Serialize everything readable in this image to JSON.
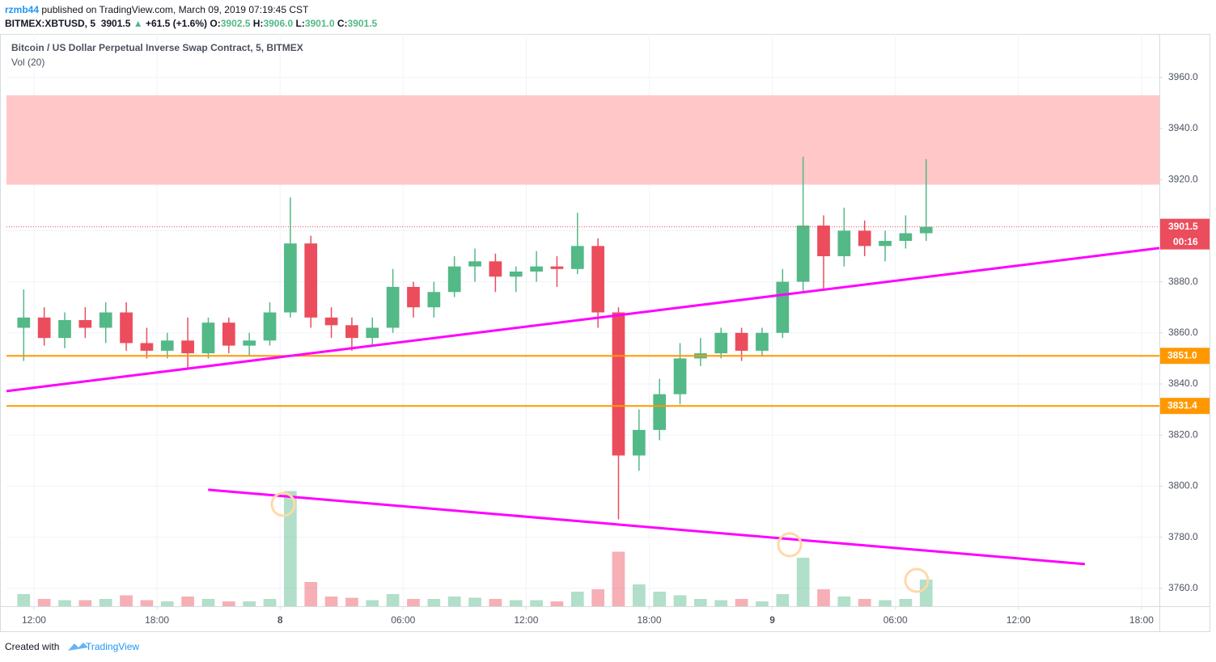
{
  "header": {
    "author": "rzmb44",
    "published": "published on TradingView.com, March 09, 2019 07:19:45 CST",
    "symbol": "BITMEX:XBTUSD, 5",
    "price": "3901.5",
    "arrow": "▲",
    "change": "+61.5 (+1.6%)",
    "ohlc": [
      {
        "key": "O:",
        "value": "3902.5"
      },
      {
        "key": "H:",
        "value": "3906.0"
      },
      {
        "key": "L:",
        "value": "3901.0"
      },
      {
        "key": "C:",
        "value": "3901.5"
      }
    ]
  },
  "footer": {
    "created": "Created with",
    "brand": "TradingView"
  },
  "chart_data": {
    "type": "candlestick",
    "title": "Bitcoin / US Dollar Perpetual Inverse Swap Contract, 5, BITMEX",
    "indicator": "Vol (20)",
    "up_color": "#53b987",
    "down_color": "#eb4d5c",
    "x": [
      11,
      12,
      13,
      14,
      15,
      16,
      17,
      18,
      19,
      20,
      21,
      22,
      23,
      24,
      25,
      26,
      27,
      28,
      29,
      30,
      31,
      32,
      33,
      34,
      35,
      36,
      37,
      38,
      39,
      40,
      41,
      42,
      43,
      44,
      45,
      46,
      47,
      48,
      49,
      50,
      51,
      52,
      53,
      54,
      55
    ],
    "open": [
      3862,
      3866,
      3858,
      3865,
      3862,
      3868,
      3856,
      3853,
      3857,
      3852,
      3864,
      3855,
      3857,
      3868,
      3895,
      3866,
      3863,
      3858,
      3862,
      3878,
      3870,
      3876,
      3886,
      3888,
      3882,
      3884,
      3886,
      3885,
      3894,
      3868,
      3812,
      3822,
      3836,
      3850,
      3852,
      3860,
      3853,
      3860,
      3880,
      3902,
      3890,
      3900,
      3894,
      3896,
      3899
    ],
    "high": [
      3877,
      3870,
      3868,
      3870,
      3872,
      3872,
      3862,
      3860,
      3866,
      3866,
      3866,
      3860,
      3872,
      3913,
      3898,
      3870,
      3866,
      3866,
      3885,
      3880,
      3880,
      3890,
      3893,
      3891,
      3886,
      3892,
      3890,
      3907,
      3897,
      3870,
      3830,
      3842,
      3856,
      3858,
      3862,
      3862,
      3862,
      3885,
      3929,
      3906,
      3909,
      3904,
      3900,
      3906,
      3928
    ],
    "low": [
      3849,
      3855,
      3854,
      3858,
      3856,
      3853,
      3850,
      3850,
      3846,
      3850,
      3852,
      3851,
      3855,
      3866,
      3862,
      3858,
      3853,
      3855,
      3860,
      3866,
      3866,
      3874,
      3880,
      3876,
      3876,
      3880,
      3878,
      3883,
      3862,
      3787,
      3806,
      3818,
      3832,
      3847,
      3850,
      3849,
      3851,
      3858,
      3876,
      3877,
      3886,
      3890,
      3888,
      3893,
      3896
    ],
    "close": [
      3866,
      3858,
      3865,
      3862,
      3868,
      3856,
      3853,
      3857,
      3852,
      3864,
      3855,
      3857,
      3868,
      3895,
      3866,
      3863,
      3858,
      3862,
      3878,
      3870,
      3876,
      3886,
      3888,
      3882,
      3884,
      3886,
      3885,
      3894,
      3868,
      3812,
      3822,
      3836,
      3850,
      3852,
      3860,
      3853,
      3860,
      3880,
      3902,
      3890,
      3900,
      3894,
      3896,
      3899,
      3901.5
    ],
    "volume": [
      10,
      6,
      5,
      5,
      6,
      9,
      5,
      4,
      8,
      6,
      4,
      4,
      6,
      95,
      20,
      8,
      7,
      5,
      10,
      6,
      6,
      8,
      7,
      6,
      5,
      5,
      4,
      12,
      14,
      45,
      18,
      12,
      9,
      6,
      5,
      6,
      4,
      10,
      40,
      14,
      8,
      6,
      5,
      6,
      22
    ],
    "vlim": [
      0,
      200
    ],
    "xlim": [
      10.66,
      66.87
    ],
    "ylim": [
      3753,
      3977
    ],
    "xticks": [
      {
        "value": 12,
        "label": "12:00"
      },
      {
        "value": 18,
        "label": "18:00"
      },
      {
        "value": 24,
        "label": "8"
      },
      {
        "value": 30,
        "label": "06:00"
      },
      {
        "value": 36,
        "label": "12:00"
      },
      {
        "value": 42,
        "label": "18:00"
      },
      {
        "value": 48,
        "label": "9"
      },
      {
        "value": 54,
        "label": "06:00"
      },
      {
        "value": 60,
        "label": "12:00"
      },
      {
        "value": 66,
        "label": "18:00"
      }
    ],
    "yticks": [
      {
        "value": 3760,
        "label": "3760.0"
      },
      {
        "value": 3780,
        "label": "3780.0"
      },
      {
        "value": 3800,
        "label": "3800.0"
      },
      {
        "value": 3820,
        "label": "3820.0"
      },
      {
        "value": 3840,
        "label": "3840.0"
      },
      {
        "value": 3860,
        "label": "3860.0"
      },
      {
        "value": 3880,
        "label": "3880.0"
      },
      {
        "value": 3900,
        "label": "3900.0"
      },
      {
        "value": 3920,
        "label": "3920.0"
      },
      {
        "value": 3940,
        "label": "3940.0"
      },
      {
        "value": 3960,
        "label": "3960.0"
      }
    ],
    "grid": true,
    "zone": {
      "from": 3918,
      "to": 3953,
      "color": "#ffc4c4"
    },
    "levels": [
      {
        "value": 3851,
        "label": "3851.0",
        "color": "#ff9800"
      },
      {
        "value": 3831.4,
        "label": "3831.4",
        "color": "#ff9800"
      }
    ],
    "last_price": {
      "value": 3901.5,
      "label": "3901.5",
      "countdown": "00:16",
      "color": "#eb4d5c"
    },
    "trend_lines": [
      {
        "x": [
          10.66,
          66.87
        ],
        "y": [
          3837.2,
          3893.2
        ],
        "color": "#ff00ff"
      },
      {
        "x": [
          20.49,
          63.24
        ],
        "y": [
          3798.6,
          3769.5
        ],
        "color": "#ff00ff"
      }
    ]
  }
}
